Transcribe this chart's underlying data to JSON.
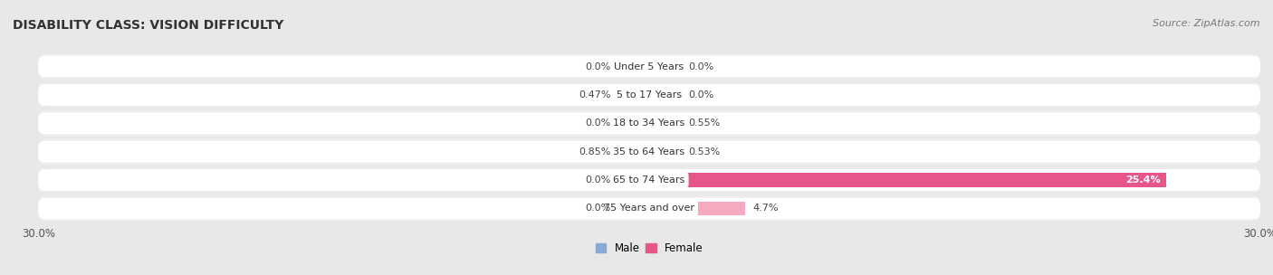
{
  "title": "DISABILITY CLASS: VISION DIFFICULTY",
  "source": "Source: ZipAtlas.com",
  "categories": [
    "Under 5 Years",
    "5 to 17 Years",
    "18 to 34 Years",
    "35 to 64 Years",
    "65 to 74 Years",
    "75 Years and over"
  ],
  "male_values": [
    0.0,
    0.47,
    0.0,
    0.85,
    0.0,
    0.0
  ],
  "female_values": [
    0.0,
    0.0,
    0.55,
    0.53,
    25.4,
    4.7
  ],
  "male_color": "#88aad4",
  "female_color": "#f5aac0",
  "female_color_bright": "#e8558a",
  "axis_limit": 30.0,
  "background_color": "#e8e8e8",
  "row_bg_color": "#ffffff",
  "row_bg_color2": "#ebebeb",
  "title_fontsize": 10,
  "source_fontsize": 8,
  "label_fontsize": 8,
  "category_fontsize": 8,
  "stub_size": 1.5
}
